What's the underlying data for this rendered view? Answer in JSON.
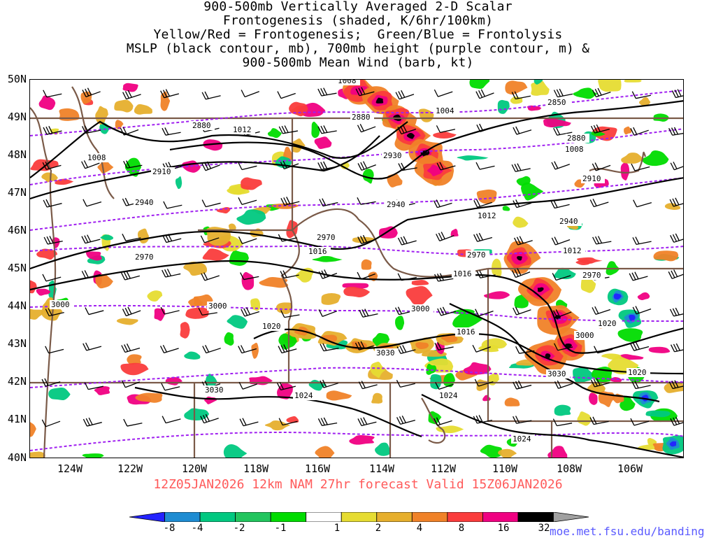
{
  "title": {
    "line1": "900-500mb Vertically Averaged 2-D Scalar",
    "line2": "Frontogenesis (shaded, K/6hr/100km)",
    "line3": "Yellow/Red = Frontogenesis;  Green/Blue = Frontolysis",
    "line4": "MSLP (black contour, mb), 700mb height (purple contour, m) &",
    "line5": "900-500mb Mean Wind (barb, kt)"
  },
  "map": {
    "extent": {
      "lon": [
        -125,
        -105
      ],
      "lat": [
        40,
        50
      ]
    },
    "lat_labels": [
      "50N",
      "49N",
      "48N",
      "47N",
      "46N",
      "45N",
      "44N",
      "43N",
      "42N",
      "41N",
      "40N"
    ],
    "lon_labels": [
      "124W",
      "122W",
      "120W",
      "118W",
      "116W",
      "114W",
      "112W",
      "110W",
      "108W",
      "106W"
    ],
    "pressure_contour_labels": [
      "1008",
      "1004",
      "1012",
      "1008",
      "1008",
      "2930",
      "1016",
      "1012",
      "1012",
      "1016",
      "1016",
      "1020",
      "1020",
      "1016",
      "1024",
      "1024",
      "1024",
      "1020"
    ],
    "height_contour_labels": [
      "2850",
      "2880",
      "2880",
      "2880",
      "2910",
      "2910",
      "2940",
      "2940",
      "2940",
      "2970",
      "2970",
      "2970",
      "2970",
      "3000",
      "3000",
      "3000",
      "3000",
      "3030",
      "3030",
      "3030"
    ],
    "colors": {
      "pressure_contour": "#000000",
      "height_contour": "#a020f0",
      "borders": "#7a5a48",
      "wind_barb": "#000000"
    }
  },
  "valid_line": "12Z05JAN2026 12km NAM 27hr forecast Valid 15Z06JAN2026",
  "colorbar": {
    "labels": [
      "-8",
      "-4",
      "-2",
      "-1",
      "1",
      "2",
      "4",
      "8",
      "16",
      "32"
    ],
    "colors": [
      "#2323ff",
      "#1e8cd2",
      "#00c880",
      "#22c55e",
      "#00dc00",
      "#ffffff",
      "#e6dc32",
      "#e6af2d",
      "#f08228",
      "#fa3c3c",
      "#f00082",
      "#000000",
      "#a0a0a0"
    ]
  },
  "credit": "moe.met.fsu.edu/banding"
}
